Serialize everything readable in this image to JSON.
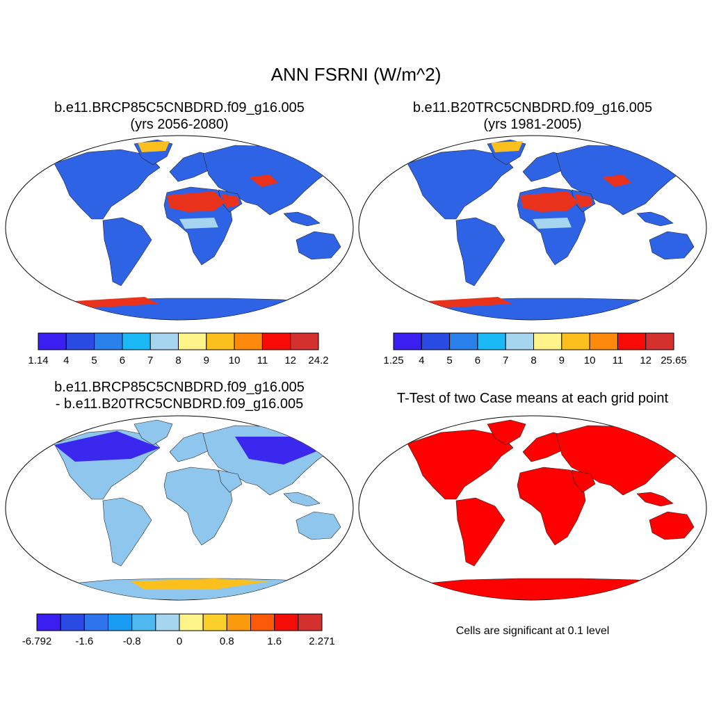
{
  "main_title": "ANN FSRNI (W/m^2)",
  "panels": [
    {
      "id": "case1",
      "title_line1": "b.e11.BRCP85C5CNBDRD.f09_g16.005",
      "title_line2": "(yrs 2056-2080)",
      "colorbar": {
        "colors": [
          "#3b1ef0",
          "#2a4ae4",
          "#2a80ea",
          "#1ab8f5",
          "#a6d6ef",
          "#fef48a",
          "#fcc01e",
          "#fd8a0c",
          "#f80a06",
          "#d3302e"
        ],
        "labels": [
          "1.14",
          "4",
          "5",
          "6",
          "7",
          "8",
          "9",
          "10",
          "11",
          "12",
          "24.2"
        ]
      }
    },
    {
      "id": "case2",
      "title_line1": "b.e11.B20TRC5CNBDRD.f09_g16.005",
      "title_line2": "(yrs 1981-2005)",
      "colorbar": {
        "colors": [
          "#3b1ef0",
          "#2a4ae4",
          "#2a80ea",
          "#1ab8f5",
          "#a6d6ef",
          "#fef48a",
          "#fcc01e",
          "#fd8a0c",
          "#f80a06",
          "#d3302e"
        ],
        "labels": [
          "1.25",
          "4",
          "5",
          "6",
          "7",
          "8",
          "9",
          "10",
          "11",
          "12",
          "25.65"
        ]
      }
    },
    {
      "id": "diff",
      "title_line1": "b.e11.BRCP85C5CNBDRD.f09_g16.005",
      "title_line2": "- b.e11.B20TRC5CNBDRD.f09_g16.005",
      "colorbar": {
        "colors": [
          "#3b1ef0",
          "#2a4ae4",
          "#2f74ea",
          "#1a9cf2",
          "#4fb9ef",
          "#a6d6ef",
          "#fef48a",
          "#fcd02a",
          "#fc9a0e",
          "#fc5a08",
          "#f40c06",
          "#d3302e"
        ],
        "labels": [
          "-6.792",
          "-1.6",
          "-0.8",
          "0",
          "0.8",
          "1.6",
          "2.271"
        ]
      }
    },
    {
      "id": "ttest",
      "title_line1": "T-Test of two Case means at each grid point",
      "note": "Cells are significant at 0.1 level"
    }
  ],
  "land_fill_colors": {
    "case1": "#2f63e6",
    "case2": "#2f63e6",
    "diff": "#8fc6ee",
    "ttest": "#ff0000"
  },
  "accent_regions": {
    "desert": "#e8321c",
    "warm": "#fcc01e",
    "cold": "#3a28ee",
    "pale": "#a6d6ef"
  }
}
